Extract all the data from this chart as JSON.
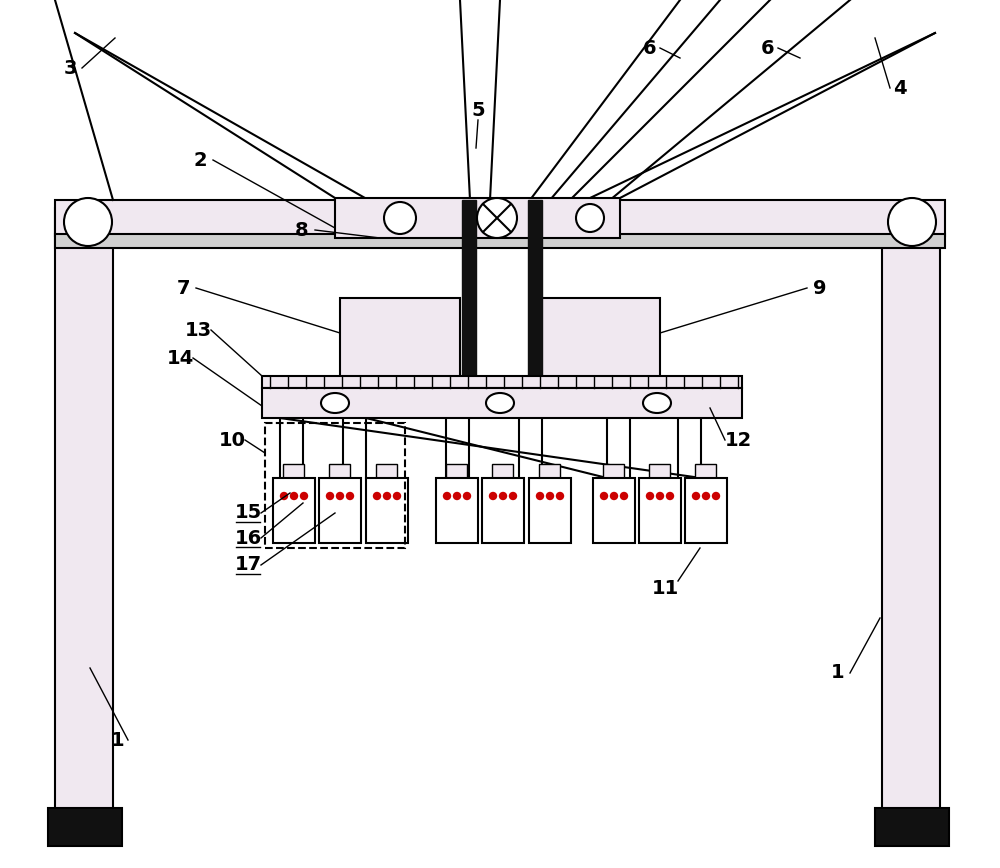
{
  "bg_color": "#ffffff",
  "line_color": "#000000",
  "fill_light": "#e8e8f0",
  "fill_pink": "#f0e8f0",
  "fill_mid": "#d0d0d0",
  "red_color": "#cc0000",
  "lw_main": 1.5,
  "lw_thick": 3.0,
  "lw_thin": 1.0
}
